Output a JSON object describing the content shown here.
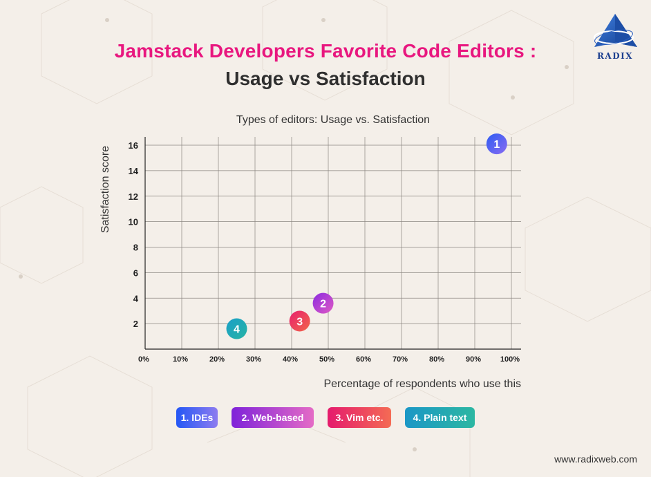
{
  "header": {
    "title_line1": "Jamstack Developers Favorite Code Editors :",
    "title_line2": "Usage vs Satisfaction"
  },
  "logo": {
    "text": "RADIX",
    "icon": "pyramid-logo-icon"
  },
  "chart_data": {
    "type": "scatter",
    "title": "Types of editors: Usage vs. Satisfaction",
    "xlabel": "Percentage of respondents who use this",
    "ylabel": "Satisfaction score",
    "xlim": [
      0,
      100
    ],
    "ylim": [
      0,
      16
    ],
    "x_ticks": [
      0,
      10,
      20,
      30,
      40,
      50,
      60,
      70,
      80,
      90,
      100
    ],
    "x_tick_labels": [
      "0%",
      "10%",
      "20%",
      "30%",
      "40%",
      "50%",
      "60%",
      "70%",
      "80%",
      "90%",
      "100%"
    ],
    "y_ticks": [
      2,
      4,
      6,
      8,
      10,
      12,
      14,
      16
    ],
    "y_tick_labels": [
      "2",
      "4",
      "6",
      "8",
      "10",
      "12",
      "14",
      "16"
    ],
    "grid": true,
    "points": [
      {
        "marker": "1",
        "name": "IDEs",
        "x": 96,
        "y": 16.1,
        "color_start": "#2d5cf2",
        "color_end": "#8a6cf2"
      },
      {
        "marker": "2",
        "name": "Web-based",
        "x": 48.6,
        "y": 3.6,
        "color_start": "#8b2be0",
        "color_end": "#e05ac4"
      },
      {
        "marker": "3",
        "name": "Vim etc.",
        "x": 42.2,
        "y": 2.2,
        "color_start": "#e8206e",
        "color_end": "#f2674a"
      },
      {
        "marker": "4",
        "name": "Plain text",
        "x": 25,
        "y": 1.6,
        "color_start": "#1aa0c8",
        "color_end": "#27b3a4"
      }
    ]
  },
  "legend": {
    "items": [
      {
        "label": "1. IDEs",
        "color_start": "#2457f5",
        "color_end": "#8d7cf0"
      },
      {
        "label": "2. Web-based",
        "color_start": "#7f22d9",
        "color_end": "#e46bc6"
      },
      {
        "label": "3. Vim etc.",
        "color_start": "#e51b6d",
        "color_end": "#f46b54"
      },
      {
        "label": "4. Plain text",
        "color_start": "#1b97c6",
        "color_end": "#2cb7a2"
      }
    ]
  },
  "footer": {
    "url": "www.radixweb.com"
  }
}
